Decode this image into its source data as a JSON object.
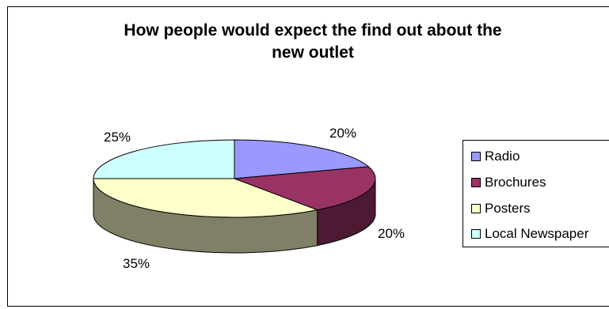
{
  "chart_data": {
    "type": "pie",
    "title": "How people would expect the find out about the new outlet",
    "title_lines": [
      "How people would expect the find out about the",
      "new outlet"
    ],
    "categories": [
      "Radio",
      "Brochures",
      "Posters",
      "Local Newspaper"
    ],
    "values": [
      20,
      20,
      35,
      25
    ],
    "data_labels": [
      "20%",
      "20%",
      "35%",
      "25%"
    ],
    "colors": [
      "#9999ff",
      "#993366",
      "#ffffcc",
      "#ccffff"
    ],
    "style": "3d",
    "legend_position": "right"
  }
}
